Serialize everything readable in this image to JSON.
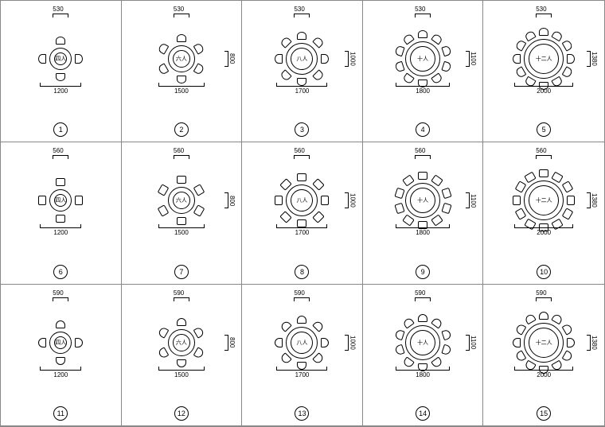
{
  "rows": [
    {
      "chair_type": "round",
      "chair_w": "530",
      "items": [
        {
          "id": 1,
          "chairs": 4,
          "table_d": 28,
          "overall": "1200",
          "height": null,
          "label": "四人"
        },
        {
          "id": 2,
          "chairs": 6,
          "table_d": 34,
          "overall": "1500",
          "height": "800",
          "label": "六人"
        },
        {
          "id": 3,
          "chairs": 8,
          "table_d": 40,
          "overall": "1700",
          "height": "1000",
          "label": "八人"
        },
        {
          "id": 4,
          "chairs": 10,
          "table_d": 44,
          "overall": "1800",
          "height": "1100",
          "label": "十人"
        },
        {
          "id": 5,
          "chairs": 12,
          "table_d": 50,
          "overall": "2000",
          "height": "1380",
          "label": "十二人"
        }
      ]
    },
    {
      "chair_type": "square",
      "chair_w": "560",
      "items": [
        {
          "id": 6,
          "chairs": 4,
          "table_d": 28,
          "overall": "1200",
          "height": null,
          "label": "四人"
        },
        {
          "id": 7,
          "chairs": 6,
          "table_d": 34,
          "overall": "1500",
          "height": "800",
          "label": "六人"
        },
        {
          "id": 8,
          "chairs": 8,
          "table_d": 40,
          "overall": "1700",
          "height": "1000",
          "label": "八人"
        },
        {
          "id": 9,
          "chairs": 10,
          "table_d": 44,
          "overall": "1800",
          "height": "1100",
          "label": "十人"
        },
        {
          "id": 10,
          "chairs": 12,
          "table_d": 50,
          "overall": "2000",
          "height": "1380",
          "label": "十二人"
        }
      ]
    },
    {
      "chair_type": "curved",
      "chair_w": "590",
      "items": [
        {
          "id": 11,
          "chairs": 4,
          "table_d": 28,
          "overall": "1200",
          "height": null,
          "label": "四人"
        },
        {
          "id": 12,
          "chairs": 6,
          "table_d": 34,
          "overall": "1500",
          "height": "800",
          "label": "六人"
        },
        {
          "id": 13,
          "chairs": 8,
          "table_d": 40,
          "overall": "1700",
          "height": "1000",
          "label": "八人"
        },
        {
          "id": 14,
          "chairs": 10,
          "table_d": 44,
          "overall": "1800",
          "height": "1100",
          "label": "十人"
        },
        {
          "id": 15,
          "chairs": 12,
          "table_d": 50,
          "overall": "2000",
          "height": "1380",
          "label": "十二人"
        }
      ]
    }
  ],
  "colors": {
    "bg": "#ffffff",
    "line": "#000000",
    "grid": "#888888"
  }
}
